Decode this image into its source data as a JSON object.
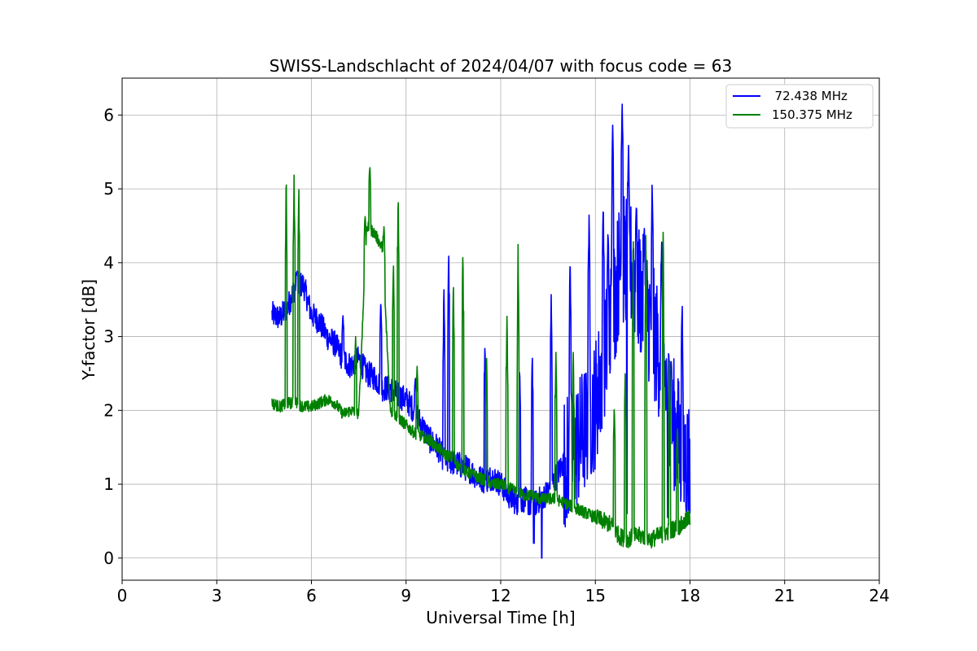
{
  "chart_data": {
    "type": "line",
    "title": "SWISS-Landschlacht of 2024/04/07 with focus code = 63",
    "xlabel": "Universal Time [h]",
    "ylabel": "Y-factor [dB]",
    "xlim": [
      0,
      24
    ],
    "ylim": [
      -0.3,
      6.5
    ],
    "xticks": [
      0,
      3,
      6,
      9,
      12,
      15,
      18,
      21,
      24
    ],
    "xtick_labels": [
      "0",
      "3",
      "6",
      "9",
      "12",
      "15",
      "18",
      "21",
      "24"
    ],
    "yticks": [
      0,
      1,
      2,
      3,
      4,
      5,
      6
    ],
    "ytick_labels": [
      "0",
      "1",
      "2",
      "3",
      "4",
      "5",
      "6"
    ],
    "grid": true,
    "legend_position": "top-right",
    "series": [
      {
        "name": "  72.438 MHz",
        "color": "#0000ff",
        "x": [
          4.75,
          5.0,
          5.25,
          5.5,
          5.75,
          6.0,
          6.25,
          6.5,
          6.75,
          7.0,
          7.25,
          7.5,
          7.75,
          8.0,
          8.25,
          8.5,
          8.75,
          9.0,
          9.25,
          9.5,
          9.75,
          10.0,
          10.25,
          10.5,
          10.75,
          11.0,
          11.25,
          11.5,
          11.75,
          12.0,
          12.25,
          12.5,
          12.75,
          13.0,
          13.25,
          13.5,
          13.75,
          14.0,
          14.25,
          14.5,
          14.75,
          15.0,
          15.25,
          15.5,
          15.75,
          16.0,
          16.25,
          16.5,
          16.75,
          17.0,
          17.25,
          17.5,
          17.75,
          18.0
        ],
        "y": [
          3.3,
          3.25,
          3.4,
          3.7,
          3.7,
          3.3,
          3.2,
          3.0,
          2.9,
          2.7,
          2.6,
          2.7,
          2.5,
          2.45,
          2.3,
          2.3,
          2.2,
          2.15,
          2.0,
          1.8,
          1.6,
          1.5,
          1.3,
          1.3,
          1.25,
          1.2,
          1.1,
          1.05,
          1.1,
          1.0,
          0.85,
          0.75,
          0.8,
          0.7,
          0.8,
          0.9,
          1.1,
          1.3,
          1.4,
          1.6,
          1.8,
          2.1,
          2.6,
          3.2,
          3.9,
          4.1,
          3.8,
          3.5,
          3.2,
          2.8,
          2.4,
          1.8,
          1.4,
          1.3
        ],
        "peaks": [
          [
            5.55,
            3.9
          ],
          [
            7.0,
            3.3
          ],
          [
            8.2,
            3.5
          ],
          [
            9.3,
            2.45
          ],
          [
            10.2,
            3.7
          ],
          [
            10.35,
            4.25
          ],
          [
            11.5,
            2.9
          ],
          [
            12.6,
            2.6
          ],
          [
            13.0,
            2.8
          ],
          [
            13.3,
            0.0
          ],
          [
            13.6,
            3.6
          ],
          [
            14.2,
            4.1
          ],
          [
            14.8,
            4.7
          ],
          [
            15.25,
            4.8
          ],
          [
            15.4,
            4.45
          ],
          [
            15.55,
            5.9
          ],
          [
            15.85,
            6.2
          ],
          [
            16.05,
            5.6
          ],
          [
            16.3,
            4.8
          ],
          [
            16.55,
            4.5
          ],
          [
            16.8,
            5.1
          ],
          [
            17.1,
            4.3
          ],
          [
            17.4,
            2.7
          ],
          [
            17.75,
            3.5
          ]
        ],
        "troughs": [
          [
            13.3,
            0.0
          ],
          [
            13.05,
            0.2
          ],
          [
            14.1,
            0.55
          ],
          [
            16.0,
            0.6
          ],
          [
            17.3,
            0.55
          ]
        ]
      },
      {
        "name": "150.375 MHz",
        "color": "#008000",
        "x": [
          4.75,
          5.0,
          5.25,
          5.5,
          5.75,
          6.0,
          6.25,
          6.5,
          6.75,
          7.0,
          7.25,
          7.5,
          7.75,
          8.0,
          8.25,
          8.5,
          8.75,
          9.0,
          9.25,
          9.5,
          9.75,
          10.0,
          10.25,
          10.5,
          10.75,
          11.0,
          11.25,
          11.5,
          11.75,
          12.0,
          12.25,
          12.5,
          12.75,
          13.0,
          13.25,
          13.5,
          13.75,
          14.0,
          14.25,
          14.5,
          14.75,
          15.0,
          15.25,
          15.5,
          15.75,
          16.0,
          16.25,
          16.5,
          16.75,
          17.0,
          17.25,
          17.5,
          17.75,
          18.0
        ],
        "y": [
          2.1,
          2.05,
          2.1,
          2.1,
          2.05,
          2.05,
          2.1,
          2.15,
          2.1,
          1.95,
          2.0,
          1.95,
          4.5,
          4.4,
          4.2,
          2.0,
          1.9,
          1.8,
          1.7,
          1.65,
          1.6,
          1.5,
          1.4,
          1.35,
          1.2,
          1.15,
          1.1,
          1.05,
          1.0,
          1.0,
          0.95,
          0.9,
          0.85,
          0.85,
          0.8,
          0.8,
          0.8,
          0.75,
          0.7,
          0.65,
          0.6,
          0.55,
          0.5,
          0.45,
          0.3,
          0.25,
          0.3,
          0.3,
          0.25,
          0.3,
          0.35,
          0.4,
          0.45,
          0.55
        ],
        "peaks": [
          [
            5.2,
            5.25
          ],
          [
            5.45,
            5.2
          ],
          [
            5.6,
            5.05
          ],
          [
            7.4,
            3.0
          ],
          [
            7.7,
            4.65
          ],
          [
            7.85,
            5.35
          ],
          [
            8.3,
            4.5
          ],
          [
            8.6,
            4.0
          ],
          [
            8.75,
            5.0
          ],
          [
            9.35,
            2.6
          ],
          [
            10.5,
            3.8
          ],
          [
            10.8,
            4.15
          ],
          [
            11.55,
            2.8
          ],
          [
            12.2,
            3.35
          ],
          [
            12.55,
            4.3
          ],
          [
            13.75,
            2.8
          ],
          [
            14.3,
            2.8
          ],
          [
            15.6,
            2.1
          ],
          [
            15.95,
            2.65
          ],
          [
            16.2,
            4.4
          ],
          [
            16.6,
            4.4
          ],
          [
            17.15,
            4.5
          ],
          [
            17.35,
            2.8
          ],
          [
            17.6,
            1.8
          ]
        ]
      }
    ]
  }
}
